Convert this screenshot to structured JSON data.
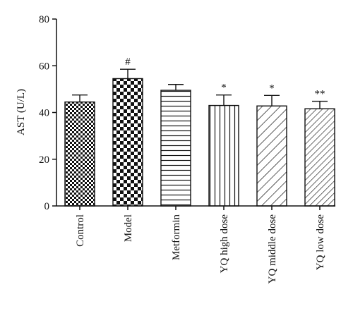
{
  "chart_data": {
    "type": "bar",
    "title": "",
    "xlabel": "",
    "ylabel": "AST (U/L)",
    "ylim": [
      0,
      80
    ],
    "yticks": [
      0,
      20,
      40,
      60,
      80
    ],
    "grid": false,
    "categories": [
      "Control",
      "Model",
      "Metformin",
      "YQ high dose",
      "YQ middle dose",
      "YQ low dose"
    ],
    "values": [
      44.5,
      54.5,
      49.5,
      43,
      42.8,
      41.6
    ],
    "errors": [
      3,
      4,
      2.5,
      4.5,
      4.5,
      3.2
    ],
    "annotations": [
      "",
      "#",
      "",
      "*",
      "*",
      "**"
    ],
    "patterns": [
      "fine-checker",
      "coarse-checker",
      "horizontal-lines",
      "vertical-lines",
      "diagonal-lines",
      "dense-diagonal-lines"
    ]
  }
}
